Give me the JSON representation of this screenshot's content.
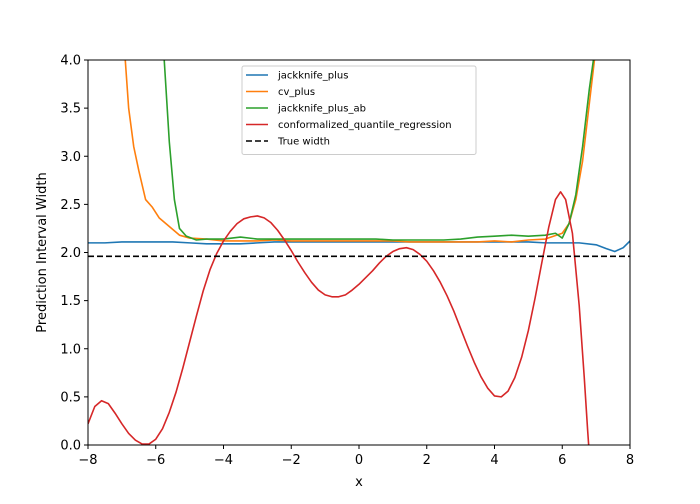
{
  "chart_data": {
    "type": "line",
    "title": "",
    "xlabel": "x",
    "ylabel": "Prediction Interval Width",
    "xlim": [
      -8,
      8
    ],
    "ylim": [
      0,
      4
    ],
    "xticks": [
      -8,
      -6,
      -4,
      -2,
      0,
      2,
      4,
      6,
      8
    ],
    "yticks": [
      0.0,
      0.5,
      1.0,
      1.5,
      2.0,
      2.5,
      3.0,
      3.5,
      4.0
    ],
    "xtick_labels": [
      "−8",
      "−6",
      "−4",
      "−2",
      "0",
      "2",
      "4",
      "6",
      "8"
    ],
    "ytick_labels": [
      "0.0",
      "0.5",
      "1.0",
      "1.5",
      "2.0",
      "2.5",
      "3.0",
      "3.5",
      "4.0"
    ],
    "grid": false,
    "legend_position": "top-center",
    "series": [
      {
        "name": "jackknife_plus",
        "color": "#1f77b4",
        "style": "solid",
        "points": [
          [
            -8.0,
            2.1
          ],
          [
            -7.5,
            2.1
          ],
          [
            -7.0,
            2.11
          ],
          [
            -6.5,
            2.11
          ],
          [
            -6.0,
            2.11
          ],
          [
            -5.5,
            2.11
          ],
          [
            -5.0,
            2.1
          ],
          [
            -4.5,
            2.09
          ],
          [
            -4.0,
            2.09
          ],
          [
            -3.5,
            2.09
          ],
          [
            -3.0,
            2.1
          ],
          [
            -2.5,
            2.11
          ],
          [
            -2.0,
            2.11
          ],
          [
            -1.5,
            2.11
          ],
          [
            -1.0,
            2.11
          ],
          [
            -0.5,
            2.11
          ],
          [
            0.0,
            2.11
          ],
          [
            0.5,
            2.11
          ],
          [
            1.0,
            2.11
          ],
          [
            1.5,
            2.11
          ],
          [
            2.0,
            2.11
          ],
          [
            2.5,
            2.11
          ],
          [
            3.0,
            2.11
          ],
          [
            3.5,
            2.11
          ],
          [
            4.0,
            2.11
          ],
          [
            4.5,
            2.11
          ],
          [
            5.0,
            2.11
          ],
          [
            5.5,
            2.1
          ],
          [
            6.0,
            2.1
          ],
          [
            6.5,
            2.1
          ],
          [
            7.0,
            2.08
          ],
          [
            7.3,
            2.04
          ],
          [
            7.55,
            2.01
          ],
          [
            7.8,
            2.05
          ],
          [
            8.0,
            2.12
          ]
        ]
      },
      {
        "name": "cv_plus",
        "color": "#ff7f0e",
        "style": "solid",
        "points": [
          [
            -6.9,
            4.0
          ],
          [
            -6.8,
            3.5
          ],
          [
            -6.65,
            3.1
          ],
          [
            -6.5,
            2.85
          ],
          [
            -6.3,
            2.55
          ],
          [
            -6.1,
            2.47
          ],
          [
            -5.9,
            2.36
          ],
          [
            -5.6,
            2.27
          ],
          [
            -5.3,
            2.18
          ],
          [
            -5.0,
            2.15
          ],
          [
            -4.5,
            2.14
          ],
          [
            -4.0,
            2.12
          ],
          [
            -3.5,
            2.12
          ],
          [
            -3.0,
            2.12
          ],
          [
            -2.5,
            2.13
          ],
          [
            -2.0,
            2.12
          ],
          [
            -1.5,
            2.12
          ],
          [
            -1.0,
            2.12
          ],
          [
            -0.5,
            2.12
          ],
          [
            0.0,
            2.12
          ],
          [
            0.5,
            2.12
          ],
          [
            1.0,
            2.12
          ],
          [
            1.5,
            2.11
          ],
          [
            2.0,
            2.11
          ],
          [
            2.5,
            2.11
          ],
          [
            3.0,
            2.11
          ],
          [
            3.5,
            2.11
          ],
          [
            4.0,
            2.12
          ],
          [
            4.5,
            2.11
          ],
          [
            5.0,
            2.13
          ],
          [
            5.5,
            2.14
          ],
          [
            6.0,
            2.2
          ],
          [
            6.2,
            2.3
          ],
          [
            6.4,
            2.55
          ],
          [
            6.6,
            2.95
          ],
          [
            6.8,
            3.55
          ],
          [
            6.95,
            4.0
          ]
        ]
      },
      {
        "name": "jackknife_plus_ab",
        "color": "#2ca02c",
        "style": "solid",
        "points": [
          [
            -5.75,
            4.0
          ],
          [
            -5.6,
            3.15
          ],
          [
            -5.45,
            2.55
          ],
          [
            -5.3,
            2.25
          ],
          [
            -5.1,
            2.17
          ],
          [
            -4.8,
            2.13
          ],
          [
            -4.5,
            2.14
          ],
          [
            -4.0,
            2.14
          ],
          [
            -3.5,
            2.16
          ],
          [
            -3.0,
            2.14
          ],
          [
            -2.5,
            2.14
          ],
          [
            -2.0,
            2.14
          ],
          [
            -1.5,
            2.14
          ],
          [
            -1.0,
            2.14
          ],
          [
            -0.5,
            2.14
          ],
          [
            0.0,
            2.14
          ],
          [
            0.5,
            2.14
          ],
          [
            1.0,
            2.13
          ],
          [
            1.5,
            2.13
          ],
          [
            2.0,
            2.13
          ],
          [
            2.5,
            2.13
          ],
          [
            3.0,
            2.14
          ],
          [
            3.5,
            2.16
          ],
          [
            4.0,
            2.17
          ],
          [
            4.5,
            2.18
          ],
          [
            5.0,
            2.17
          ],
          [
            5.5,
            2.18
          ],
          [
            5.8,
            2.2
          ],
          [
            6.0,
            2.15
          ],
          [
            6.2,
            2.3
          ],
          [
            6.4,
            2.6
          ],
          [
            6.6,
            3.1
          ],
          [
            6.8,
            3.7
          ],
          [
            6.92,
            4.0
          ]
        ]
      },
      {
        "name": "conformalized_quantile_regression",
        "color": "#d62728",
        "style": "solid",
        "points": [
          [
            -8.0,
            0.22
          ],
          [
            -7.8,
            0.4
          ],
          [
            -7.6,
            0.46
          ],
          [
            -7.4,
            0.43
          ],
          [
            -7.2,
            0.33
          ],
          [
            -7.0,
            0.22
          ],
          [
            -6.8,
            0.12
          ],
          [
            -6.6,
            0.05
          ],
          [
            -6.4,
            0.01
          ],
          [
            -6.2,
            0.01
          ],
          [
            -6.0,
            0.06
          ],
          [
            -5.8,
            0.17
          ],
          [
            -5.6,
            0.34
          ],
          [
            -5.4,
            0.55
          ],
          [
            -5.2,
            0.8
          ],
          [
            -5.0,
            1.07
          ],
          [
            -4.8,
            1.34
          ],
          [
            -4.6,
            1.6
          ],
          [
            -4.4,
            1.82
          ],
          [
            -4.2,
            1.99
          ],
          [
            -4.0,
            2.12
          ],
          [
            -3.8,
            2.22
          ],
          [
            -3.6,
            2.3
          ],
          [
            -3.4,
            2.35
          ],
          [
            -3.2,
            2.37
          ],
          [
            -3.0,
            2.38
          ],
          [
            -2.8,
            2.36
          ],
          [
            -2.6,
            2.31
          ],
          [
            -2.4,
            2.23
          ],
          [
            -2.2,
            2.13
          ],
          [
            -2.0,
            2.02
          ],
          [
            -1.8,
            1.9
          ],
          [
            -1.6,
            1.79
          ],
          [
            -1.4,
            1.69
          ],
          [
            -1.2,
            1.61
          ],
          [
            -1.0,
            1.56
          ],
          [
            -0.8,
            1.54
          ],
          [
            -0.6,
            1.54
          ],
          [
            -0.4,
            1.56
          ],
          [
            -0.2,
            1.61
          ],
          [
            0.0,
            1.67
          ],
          [
            0.2,
            1.74
          ],
          [
            0.4,
            1.81
          ],
          [
            0.6,
            1.89
          ],
          [
            0.8,
            1.96
          ],
          [
            1.0,
            2.01
          ],
          [
            1.2,
            2.04
          ],
          [
            1.4,
            2.05
          ],
          [
            1.6,
            2.03
          ],
          [
            1.8,
            1.98
          ],
          [
            2.0,
            1.91
          ],
          [
            2.2,
            1.81
          ],
          [
            2.4,
            1.69
          ],
          [
            2.6,
            1.55
          ],
          [
            2.8,
            1.39
          ],
          [
            3.0,
            1.21
          ],
          [
            3.2,
            1.03
          ],
          [
            3.4,
            0.86
          ],
          [
            3.6,
            0.71
          ],
          [
            3.8,
            0.59
          ],
          [
            4.0,
            0.51
          ],
          [
            4.2,
            0.5
          ],
          [
            4.4,
            0.56
          ],
          [
            4.6,
            0.7
          ],
          [
            4.8,
            0.91
          ],
          [
            5.0,
            1.19
          ],
          [
            5.2,
            1.53
          ],
          [
            5.4,
            1.9
          ],
          [
            5.6,
            2.26
          ],
          [
            5.8,
            2.55
          ],
          [
            5.95,
            2.63
          ],
          [
            6.1,
            2.55
          ],
          [
            6.3,
            2.2
          ],
          [
            6.5,
            1.45
          ],
          [
            6.65,
            0.7
          ],
          [
            6.75,
            0.15
          ],
          [
            6.78,
            0.0
          ]
        ]
      },
      {
        "name": "True width",
        "color": "#000000",
        "style": "dashed",
        "points": [
          [
            -8.0,
            1.96
          ],
          [
            8.0,
            1.96
          ]
        ]
      }
    ]
  }
}
